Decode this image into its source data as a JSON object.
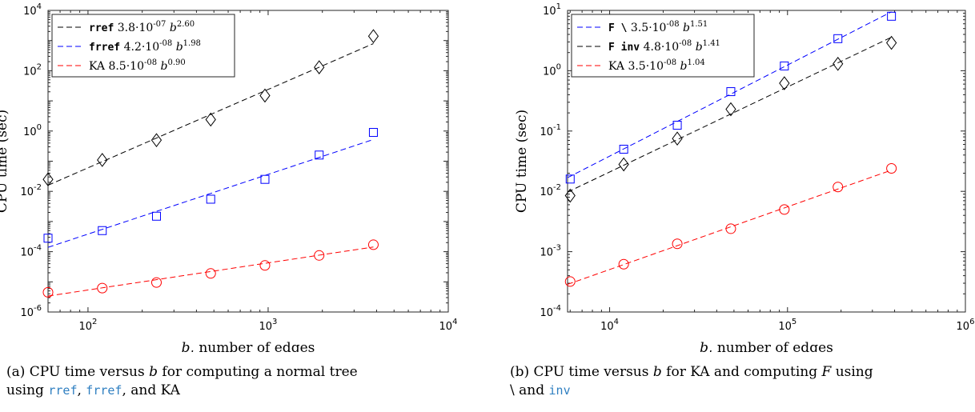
{
  "chart_data": [
    {
      "type": "scatter",
      "title": "",
      "xlabel": "b, number of edges",
      "ylabel": "CPU time (sec)",
      "xscale": "log",
      "yscale": "log",
      "xlim": [
        60,
        10000
      ],
      "ylim": [
        1e-06,
        10000
      ],
      "xticks": [
        {
          "value": 100,
          "label": "10^2"
        },
        {
          "value": 1000,
          "label": "10^3"
        },
        {
          "value": 10000,
          "label": "10^4"
        }
      ],
      "yticks": [
        {
          "value": 1e-06,
          "label": "10^-6"
        },
        {
          "value": 0.0001,
          "label": "10^-4"
        },
        {
          "value": 0.01,
          "label": "10^-2"
        },
        {
          "value": 1,
          "label": "10^0"
        },
        {
          "value": 100,
          "label": "10^2"
        },
        {
          "value": 10000,
          "label": "10^4"
        }
      ],
      "grid": false,
      "legend_position": "top-left",
      "series": [
        {
          "code": "rref",
          "text": " 3.8·10^-07 b^2.60",
          "color": "#000000",
          "marker": "diamond",
          "fit": {
            "a": 3.8e-07,
            "p": 2.6
          },
          "x": [
            60,
            120,
            240,
            480,
            960,
            1920,
            3840
          ],
          "y": [
            0.025,
            0.11,
            0.5,
            2.4,
            15,
            130,
            1400
          ]
        },
        {
          "code": "frref",
          "text": " 4.2·10^-08 b^1.98",
          "color": "#0000ff",
          "marker": "square",
          "fit": {
            "a": 4.2e-08,
            "p": 1.98
          },
          "x": [
            60,
            120,
            240,
            480,
            960,
            1920,
            3840
          ],
          "y": 0.00028,
          "ys": [
            0.00028,
            0.0005,
            0.0015,
            0.0055,
            0.025,
            0.16,
            0.9
          ]
        },
        {
          "code": "",
          "text": "KA 8.5·10^-08 b^0.90",
          "color": "#ff0000",
          "marker": "circle",
          "fit": {
            "a": 8.5e-08,
            "p": 0.9
          },
          "x": [
            60,
            120,
            240,
            480,
            960,
            1920,
            3840
          ],
          "y": [
            4.5e-06,
            6.2e-06,
            9.5e-06,
            1.9e-05,
            3.5e-05,
            7.5e-05,
            0.00017
          ]
        }
      ]
    },
    {
      "type": "scatter",
      "title": "",
      "xlabel": "b, number of edges",
      "ylabel": "CPU time (sec)",
      "xscale": "log",
      "yscale": "log",
      "xlim": [
        5800,
        1000000
      ],
      "ylim": [
        0.0001,
        10
      ],
      "xticks": [
        {
          "value": 10000,
          "label": "10^4"
        },
        {
          "value": 100000,
          "label": "10^5"
        },
        {
          "value": 1000000,
          "label": "10^6"
        }
      ],
      "yticks": [
        {
          "value": 0.0001,
          "label": "10^-4"
        },
        {
          "value": 0.001,
          "label": "10^-3"
        },
        {
          "value": 0.01,
          "label": "10^-2"
        },
        {
          "value": 0.1,
          "label": "10^-1"
        },
        {
          "value": 1,
          "label": "10^0"
        },
        {
          "value": 10,
          "label": "10^1"
        }
      ],
      "grid": false,
      "legend_position": "top-left",
      "series": [
        {
          "code": "F \\",
          "text": "  3.5·10^-08 b^1.51",
          "color": "#0000ff",
          "marker": "square",
          "fit": {
            "a": 3.5e-08,
            "p": 1.51
          },
          "x": [
            6000,
            12000,
            24000,
            48000,
            96000,
            192000,
            384000
          ],
          "y": [
            0.016,
            0.05,
            0.125,
            0.45,
            1.2,
            3.4,
            8
          ]
        },
        {
          "code": "F inv",
          "text": " 4.8·10^-08 b^1.41",
          "color": "#000000",
          "marker": "diamond",
          "fit": {
            "a": 4.8e-08,
            "p": 1.41
          },
          "x": [
            6000,
            12000,
            24000,
            48000,
            96000,
            192000,
            384000
          ],
          "y": [
            0.0085,
            0.028,
            0.075,
            0.23,
            0.62,
            1.3,
            2.9
          ]
        },
        {
          "code": "",
          "text": "KA 3.5·10^-08 b^1.04",
          "color": "#ff0000",
          "marker": "circle",
          "fit": {
            "a": 3.5e-08,
            "p": 1.04
          },
          "x": [
            6000,
            12000,
            24000,
            48000,
            96000,
            192000,
            384000
          ],
          "y": [
            0.00032,
            0.00062,
            0.00135,
            0.0024,
            0.005,
            0.0118,
            0.024
          ]
        }
      ]
    }
  ],
  "captions": [
    {
      "parts": [
        {
          "t": "(a) CPU time versus "
        },
        {
          "t": "b",
          "s": "i"
        },
        {
          "t": " for computing a normal tree"
        },
        {
          "t": "\n"
        },
        {
          "t": "using "
        },
        {
          "t": "rref",
          "s": "code"
        },
        {
          "t": ", "
        },
        {
          "t": "frref",
          "s": "code"
        },
        {
          "t": ", and KA"
        }
      ]
    },
    {
      "parts": [
        {
          "t": "(b) CPU time versus "
        },
        {
          "t": "b",
          "s": "i"
        },
        {
          "t": " for KA and computing "
        },
        {
          "t": "F",
          "s": "i"
        },
        {
          "t": " using"
        },
        {
          "t": "\n"
        },
        {
          "t": "\\"
        },
        {
          "t": " and "
        },
        {
          "t": "inv",
          "s": "code"
        }
      ]
    }
  ]
}
